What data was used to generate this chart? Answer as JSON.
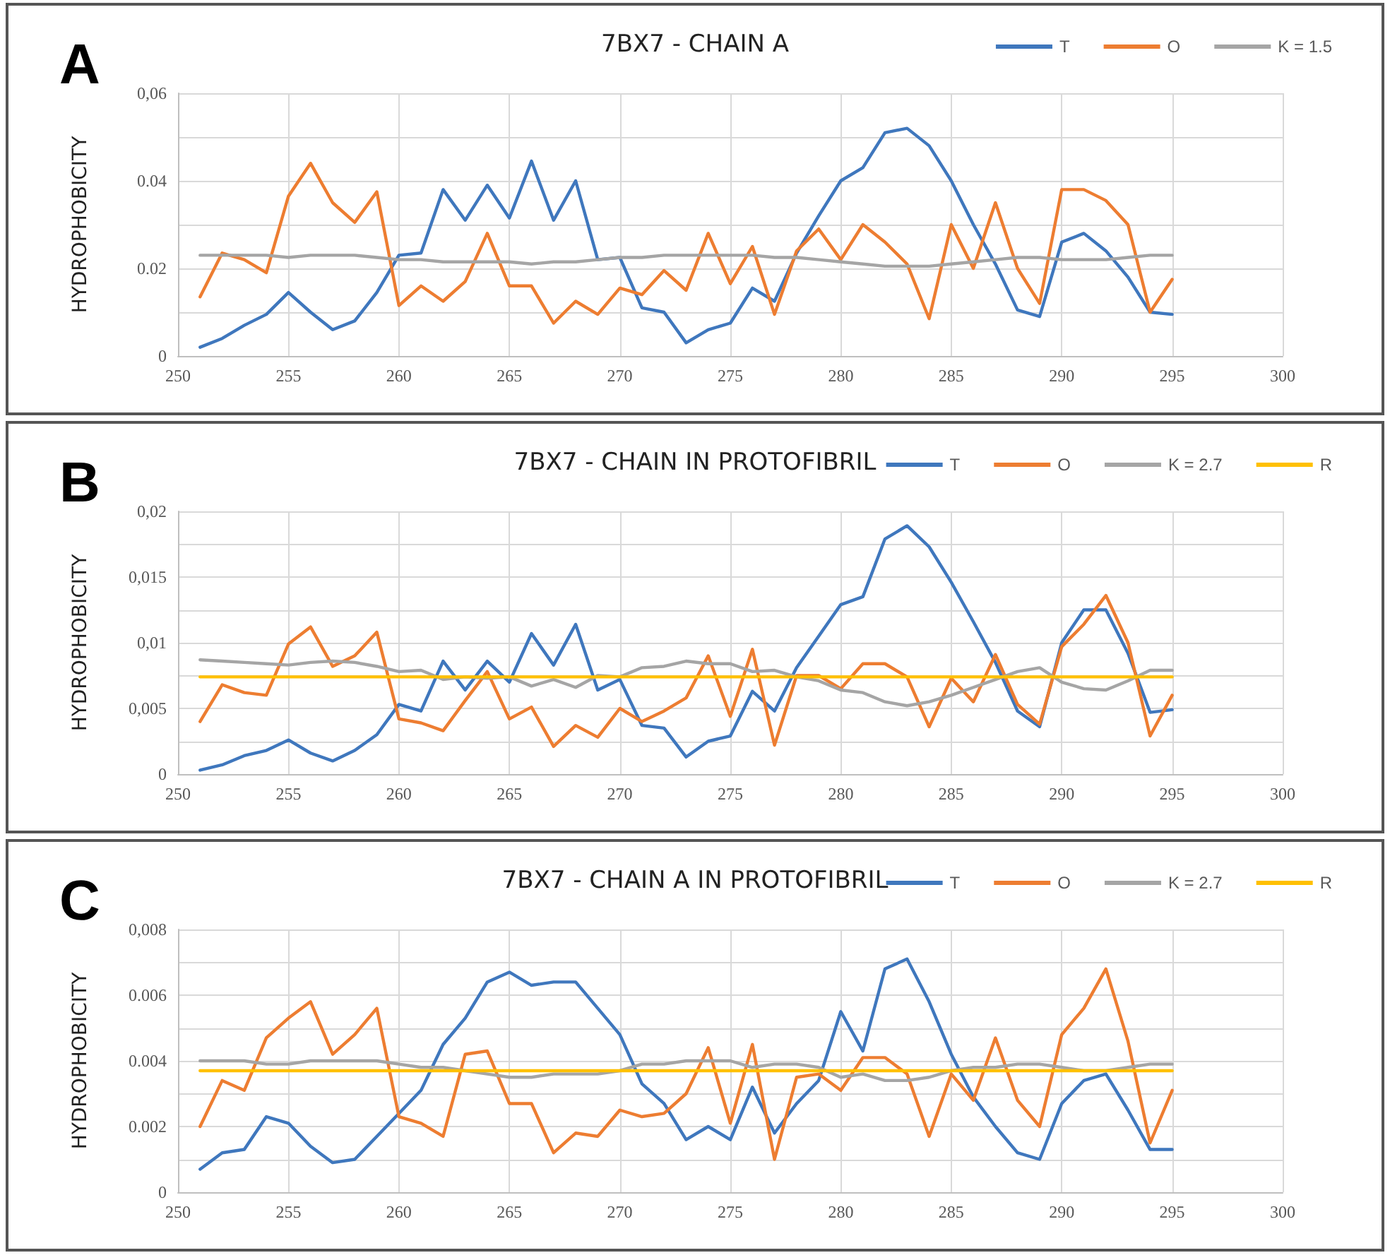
{
  "chart_data": [
    {
      "type": "line",
      "title": "7BX7 - CHAIN A",
      "ylabel": "HYDROPHOBICITY",
      "annotations": [
        "A"
      ],
      "legend": "top right",
      "grid": true,
      "marker": "none",
      "line_style": "solid",
      "x": [
        251,
        252,
        253,
        254,
        255,
        256,
        257,
        258,
        259,
        260,
        261,
        262,
        263,
        264,
        265,
        266,
        267,
        268,
        269,
        270,
        271,
        272,
        273,
        274,
        275,
        276,
        277,
        278,
        279,
        280,
        281,
        282,
        283,
        284,
        285,
        286,
        287,
        288,
        289,
        290,
        291,
        292,
        293,
        294,
        295
      ],
      "xlim": [
        250,
        300
      ],
      "xticks": [
        250,
        255,
        260,
        265,
        270,
        275,
        280,
        285,
        290,
        295,
        300
      ],
      "ylim": [
        0,
        0.06
      ],
      "yticks": [
        0,
        {
          "value": 0.01,
          "label": null
        },
        0.02,
        {
          "value": 0.03,
          "label": null
        },
        0.04,
        {
          "value": 0.05,
          "label": null
        },
        {
          "value": 0.06,
          "label": "0,06"
        }
      ],
      "series": [
        {
          "name": "T",
          "color": "#3f77bd",
          "values": [
            0.002,
            0.004,
            0.007,
            0.0095,
            0.0145,
            0.01,
            0.006,
            0.008,
            0.0145,
            0.023,
            0.0235,
            0.038,
            0.031,
            0.039,
            0.0315,
            0.0445,
            0.031,
            0.04,
            0.022,
            0.0225,
            0.011,
            0.01,
            0.003,
            0.006,
            0.0075,
            0.0155,
            0.0125,
            0.0235,
            0.032,
            0.04,
            0.043,
            0.051,
            0.052,
            0.048,
            0.04,
            0.03,
            0.021,
            0.0105,
            0.009,
            0.026,
            0.028,
            0.024,
            0.018,
            0.01,
            0.0095
          ]
        },
        {
          "name": "O",
          "color": "#ed7d31",
          "values": [
            0.0135,
            0.0235,
            0.022,
            0.019,
            0.0365,
            0.044,
            0.035,
            0.0305,
            0.0375,
            0.0115,
            0.016,
            0.0125,
            0.017,
            0.028,
            0.016,
            0.016,
            0.0075,
            0.0125,
            0.0095,
            0.0155,
            0.014,
            0.0195,
            0.015,
            0.028,
            0.0165,
            0.025,
            0.0095,
            0.024,
            0.029,
            0.022,
            0.03,
            0.026,
            0.021,
            0.0085,
            0.03,
            0.02,
            0.035,
            0.02,
            0.012,
            0.038,
            0.038,
            0.0355,
            0.03,
            0.01,
            0.0175
          ]
        },
        {
          "name": "K = 1.5",
          "color": "#a5a5a5",
          "values": [
            0.023,
            0.023,
            0.023,
            0.023,
            0.0225,
            0.023,
            0.023,
            0.023,
            0.0225,
            0.022,
            0.022,
            0.0215,
            0.0215,
            0.0215,
            0.0215,
            0.021,
            0.0215,
            0.0215,
            0.022,
            0.0225,
            0.0225,
            0.023,
            0.023,
            0.023,
            0.023,
            0.023,
            0.0225,
            0.0225,
            0.022,
            0.0215,
            0.021,
            0.0205,
            0.0205,
            0.0205,
            0.021,
            0.0215,
            0.022,
            0.0225,
            0.0225,
            0.022,
            0.022,
            0.022,
            0.0225,
            0.023,
            0.023
          ]
        }
      ]
    },
    {
      "type": "line",
      "title": "7BX7 - CHAIN IN PROTOFIBRIL",
      "ylabel": "HYDROPHOBICITY",
      "annotations": [
        "B"
      ],
      "legend": "top right",
      "grid": true,
      "marker": "none",
      "line_style": "solid",
      "x": [
        251,
        252,
        253,
        254,
        255,
        256,
        257,
        258,
        259,
        260,
        261,
        262,
        263,
        264,
        265,
        266,
        267,
        268,
        269,
        270,
        271,
        272,
        273,
        274,
        275,
        276,
        277,
        278,
        279,
        280,
        281,
        282,
        283,
        284,
        285,
        286,
        287,
        288,
        289,
        290,
        291,
        292,
        293,
        294,
        295
      ],
      "xlim": [
        250,
        300
      ],
      "xticks": [
        250,
        255,
        260,
        265,
        270,
        275,
        280,
        285,
        290,
        295,
        300
      ],
      "ylim": [
        0,
        0.02
      ],
      "yticks": [
        0,
        {
          "value": 0.0025,
          "label": null
        },
        {
          "value": 0.005,
          "label": "0,005"
        },
        {
          "value": 0.0075,
          "label": null
        },
        {
          "value": 0.01,
          "label": "0,01"
        },
        {
          "value": 0.0125,
          "label": null
        },
        {
          "value": 0.015,
          "label": "0,015"
        },
        {
          "value": 0.0175,
          "label": null
        },
        {
          "value": 0.02,
          "label": "0,02"
        }
      ],
      "series": [
        {
          "name": "T",
          "color": "#3f77bd",
          "values": [
            0.0003,
            0.0007,
            0.0014,
            0.0018,
            0.0026,
            0.0016,
            0.001,
            0.0018,
            0.003,
            0.0053,
            0.0048,
            0.0086,
            0.0064,
            0.0086,
            0.007,
            0.0107,
            0.0083,
            0.0114,
            0.0064,
            0.0072,
            0.0037,
            0.0035,
            0.0013,
            0.0025,
            0.0029,
            0.0063,
            0.0048,
            0.0081,
            0.0105,
            0.0129,
            0.0135,
            0.0179,
            0.0189,
            0.0173,
            0.0146,
            0.0116,
            0.0085,
            0.0048,
            0.0036,
            0.01,
            0.0125,
            0.0125,
            0.0092,
            0.0047,
            0.0049
          ]
        },
        {
          "name": "O",
          "color": "#ed7d31",
          "values": [
            0.004,
            0.0068,
            0.0062,
            0.006,
            0.0099,
            0.0112,
            0.0082,
            0.009,
            0.0108,
            0.0042,
            0.0039,
            0.0033,
            0.0056,
            0.0078,
            0.0042,
            0.0051,
            0.0021,
            0.0037,
            0.0028,
            0.005,
            0.004,
            0.0048,
            0.0058,
            0.009,
            0.0044,
            0.0095,
            0.0022,
            0.0075,
            0.0075,
            0.0065,
            0.0084,
            0.0084,
            0.0074,
            0.0036,
            0.0073,
            0.0055,
            0.0091,
            0.0053,
            0.0038,
            0.0097,
            0.0114,
            0.0136,
            0.01,
            0.0029,
            0.006
          ]
        },
        {
          "name": "K = 2.7",
          "color": "#a5a5a5",
          "values": [
            0.0087,
            0.0086,
            0.0085,
            0.0084,
            0.0083,
            0.0085,
            0.0086,
            0.0085,
            0.0082,
            0.0078,
            0.0079,
            0.0072,
            0.0074,
            0.0073,
            0.0074,
            0.0067,
            0.0072,
            0.0066,
            0.0075,
            0.0074,
            0.0081,
            0.0082,
            0.0086,
            0.0084,
            0.0084,
            0.0078,
            0.0079,
            0.0074,
            0.0071,
            0.0064,
            0.0062,
            0.0055,
            0.0052,
            0.0055,
            0.006,
            0.0066,
            0.0072,
            0.0078,
            0.0081,
            0.007,
            0.0065,
            0.0064,
            0.0071,
            0.0079,
            0.0079
          ]
        },
        {
          "name": "R",
          "color": "#ffc000",
          "values": [
            0.0074,
            0.0074,
            0.0074,
            0.0074,
            0.0074,
            0.0074,
            0.0074,
            0.0074,
            0.0074,
            0.0074,
            0.0074,
            0.0074,
            0.0074,
            0.0074,
            0.0074,
            0.0074,
            0.0074,
            0.0074,
            0.0074,
            0.0074,
            0.0074,
            0.0074,
            0.0074,
            0.0074,
            0.0074,
            0.0074,
            0.0074,
            0.0074,
            0.0074,
            0.0074,
            0.0074,
            0.0074,
            0.0074,
            0.0074,
            0.0074,
            0.0074,
            0.0074,
            0.0074,
            0.0074,
            0.0074,
            0.0074,
            0.0074,
            0.0074,
            0.0074,
            0.0074
          ]
        }
      ]
    },
    {
      "type": "line",
      "title": "7BX7 - CHAIN A IN PROTOFIBRIL",
      "ylabel": "HYDROPHOBICITY",
      "annotations": [
        "C"
      ],
      "legend": "top right",
      "grid": true,
      "marker": "none",
      "line_style": "solid",
      "x": [
        251,
        252,
        253,
        254,
        255,
        256,
        257,
        258,
        259,
        260,
        261,
        262,
        263,
        264,
        265,
        266,
        267,
        268,
        269,
        270,
        271,
        272,
        273,
        274,
        275,
        276,
        277,
        278,
        279,
        280,
        281,
        282,
        283,
        284,
        285,
        286,
        287,
        288,
        289,
        290,
        291,
        292,
        293,
        294,
        295
      ],
      "xlim": [
        250,
        300
      ],
      "xticks": [
        250,
        255,
        260,
        265,
        270,
        275,
        280,
        285,
        290,
        295,
        300
      ],
      "ylim": [
        0,
        0.008
      ],
      "yticks": [
        0,
        {
          "value": 0.001,
          "label": null
        },
        0.002,
        {
          "value": 0.003,
          "label": null
        },
        0.004,
        {
          "value": 0.005,
          "label": null
        },
        0.006,
        {
          "value": 0.007,
          "label": null
        },
        {
          "value": 0.008,
          "label": "0,008"
        }
      ],
      "series": [
        {
          "name": "T",
          "color": "#3f77bd",
          "values": [
            0.0007,
            0.0012,
            0.0013,
            0.0023,
            0.0021,
            0.0014,
            0.0009,
            0.001,
            0.0017,
            0.0024,
            0.0031,
            0.0045,
            0.0053,
            0.0064,
            0.0067,
            0.0063,
            0.0064,
            0.0064,
            0.0056,
            0.0048,
            0.0033,
            0.0027,
            0.0016,
            0.002,
            0.0016,
            0.0032,
            0.0018,
            0.0027,
            0.0034,
            0.0055,
            0.0043,
            0.0068,
            0.0071,
            0.0058,
            0.0042,
            0.0029,
            0.002,
            0.0012,
            0.001,
            0.0027,
            0.0034,
            0.0036,
            0.0025,
            0.0013,
            0.0013
          ]
        },
        {
          "name": "O",
          "color": "#ed7d31",
          "values": [
            0.002,
            0.0034,
            0.0031,
            0.0047,
            0.0053,
            0.0058,
            0.0042,
            0.0048,
            0.0056,
            0.0023,
            0.0021,
            0.0017,
            0.0042,
            0.0043,
            0.0027,
            0.0027,
            0.0012,
            0.0018,
            0.0017,
            0.0025,
            0.0023,
            0.0024,
            0.003,
            0.0044,
            0.0021,
            0.0045,
            0.001,
            0.0035,
            0.0036,
            0.0031,
            0.0041,
            0.0041,
            0.0036,
            0.0017,
            0.0036,
            0.0028,
            0.0047,
            0.0028,
            0.002,
            0.0048,
            0.0056,
            0.0068,
            0.0046,
            0.0015,
            0.0031
          ]
        },
        {
          "name": "K = 2.7",
          "color": "#a5a5a5",
          "values": [
            0.004,
            0.004,
            0.004,
            0.0039,
            0.0039,
            0.004,
            0.004,
            0.004,
            0.004,
            0.0039,
            0.0038,
            0.0038,
            0.0037,
            0.0036,
            0.0035,
            0.0035,
            0.0036,
            0.0036,
            0.0036,
            0.0037,
            0.0039,
            0.0039,
            0.004,
            0.004,
            0.004,
            0.0038,
            0.0039,
            0.0039,
            0.0038,
            0.0035,
            0.0036,
            0.0034,
            0.0034,
            0.0035,
            0.0037,
            0.0038,
            0.0038,
            0.0039,
            0.0039,
            0.0038,
            0.0037,
            0.0037,
            0.0038,
            0.0039,
            0.0039
          ]
        },
        {
          "name": "R",
          "color": "#ffc000",
          "values": [
            0.0037,
            0.0037,
            0.0037,
            0.0037,
            0.0037,
            0.0037,
            0.0037,
            0.0037,
            0.0037,
            0.0037,
            0.0037,
            0.0037,
            0.0037,
            0.0037,
            0.0037,
            0.0037,
            0.0037,
            0.0037,
            0.0037,
            0.0037,
            0.0037,
            0.0037,
            0.0037,
            0.0037,
            0.0037,
            0.0037,
            0.0037,
            0.0037,
            0.0037,
            0.0037,
            0.0037,
            0.0037,
            0.0037,
            0.0037,
            0.0037,
            0.0037,
            0.0037,
            0.0037,
            0.0037,
            0.0037,
            0.0037,
            0.0037,
            0.0037,
            0.0037,
            0.0037
          ]
        }
      ]
    }
  ]
}
